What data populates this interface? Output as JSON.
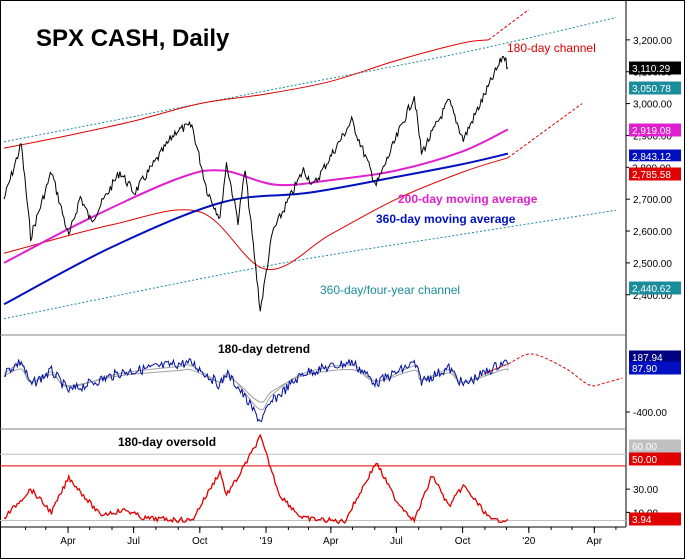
{
  "chart_data": [
    {
      "type": "line",
      "title": "SPX CASH, Daily",
      "x_range": [
        "2018-01-02",
        "2020-05-15"
      ],
      "x_tick_labels": [
        "Apr",
        "Jul",
        "Oct",
        "'19",
        "Apr",
        "Jul",
        "Oct",
        "'20",
        "Apr"
      ],
      "ylim": [
        2280,
        3300
      ],
      "y_ticks": [
        2400,
        2500,
        2600,
        2700,
        2800,
        2900,
        3000,
        3100,
        3200
      ],
      "y_tick_labels": [
        "2,400.00",
        "2,500.00",
        "2,600.00",
        "2,700.00",
        "2,800.00",
        "2,900.00",
        "3,000.00",
        "3,100.00",
        "3,200.00"
      ],
      "price_series_points": [
        [
          "2018-01-02",
          2700
        ],
        [
          "2018-01-26",
          2873
        ],
        [
          "2018-02-08",
          2581
        ],
        [
          "2018-03-09",
          2786
        ],
        [
          "2018-04-02",
          2582
        ],
        [
          "2018-04-18",
          2708
        ],
        [
          "2018-05-03",
          2630
        ],
        [
          "2018-06-12",
          2786
        ],
        [
          "2018-07-02",
          2720
        ],
        [
          "2018-08-29",
          2914
        ],
        [
          "2018-09-20",
          2931
        ],
        [
          "2018-10-11",
          2728
        ],
        [
          "2018-10-29",
          2641
        ],
        [
          "2018-11-07",
          2813
        ],
        [
          "2018-11-23",
          2633
        ],
        [
          "2018-12-03",
          2790
        ],
        [
          "2018-12-24",
          2351
        ],
        [
          "2019-01-10",
          2596
        ],
        [
          "2019-02-22",
          2792
        ],
        [
          "2019-03-08",
          2743
        ],
        [
          "2019-04-30",
          2946
        ],
        [
          "2019-06-03",
          2744
        ],
        [
          "2019-07-26",
          3025
        ],
        [
          "2019-08-05",
          2844
        ],
        [
          "2019-09-12",
          3009
        ],
        [
          "2019-10-02",
          2887
        ],
        [
          "2019-11-27",
          3153
        ],
        [
          "2019-12-03",
          3113
        ]
      ],
      "series": [
        {
          "name": "200-day moving average",
          "color": "#e020d0",
          "points": [
            [
              "2018-01-02",
              2500
            ],
            [
              "2018-05-01",
              2640
            ],
            [
              "2018-09-01",
              2765
            ],
            [
              "2018-11-01",
              2790
            ],
            [
              "2019-01-15",
              2745
            ],
            [
              "2019-04-01",
              2760
            ],
            [
              "2019-07-01",
              2790
            ],
            [
              "2019-10-01",
              2850
            ],
            [
              "2019-12-03",
              2919
            ]
          ]
        },
        {
          "name": "360-day moving average",
          "color": "#0010c0",
          "points": [
            [
              "2018-01-02",
              2370
            ],
            [
              "2018-06-01",
              2550
            ],
            [
              "2018-11-01",
              2690
            ],
            [
              "2019-03-01",
              2720
            ],
            [
              "2019-07-01",
              2770
            ],
            [
              "2019-10-01",
              2810
            ],
            [
              "2019-12-03",
              2843
            ]
          ]
        }
      ],
      "channels": [
        {
          "name": "180-day channel",
          "color": "#e00000",
          "upper": [
            [
              "2018-01-02",
              2860
            ],
            [
              "2018-04-01",
              2900
            ],
            [
              "2018-07-01",
              2945
            ],
            [
              "2018-10-01",
              3000
            ],
            [
              "2019-01-01",
              3030
            ],
            [
              "2019-04-01",
              3070
            ],
            [
              "2019-07-01",
              3135
            ],
            [
              "2019-10-01",
              3190
            ],
            [
              "2019-11-06",
              3200
            ]
          ],
          "upper_projection": [
            [
              "2019-11-06",
              3200
            ],
            [
              "2020-01-01",
              3295
            ]
          ],
          "lower": [
            [
              "2018-01-02",
              2530
            ],
            [
              "2018-06-01",
              2620
            ],
            [
              "2018-10-01",
              2660
            ],
            [
              "2019-01-01",
              2480
            ],
            [
              "2019-04-01",
              2590
            ],
            [
              "2019-07-01",
              2700
            ],
            [
              "2019-10-01",
              2785
            ],
            [
              "2019-12-03",
              2830
            ]
          ],
          "lower_projection": [
            [
              "2019-12-03",
              2830
            ],
            [
              "2020-03-15",
              3000
            ]
          ]
        },
        {
          "name": "360-day/four-year channel",
          "color": "#1a8c9c",
          "upper": [
            [
              "2018-01-02",
              2880
            ],
            [
              "2019-01-01",
              3040
            ],
            [
              "2019-10-01",
              3160
            ],
            [
              "2020-05-01",
              3270
            ]
          ],
          "lower": [
            [
              "2018-01-02",
              2325
            ],
            [
              "2019-01-01",
              2490
            ],
            [
              "2019-10-01",
              2590
            ],
            [
              "2020-05-01",
              2665
            ]
          ]
        }
      ],
      "annotations": [
        "180-day channel",
        "200-day moving average",
        "360-day moving average",
        "360-day/four-year channel"
      ],
      "value_labels": [
        {
          "text": "3,110.29",
          "value": 3110.29,
          "bg": "#000000",
          "fg": "#ffffff"
        },
        {
          "text": "3,050.78",
          "value": 3050.78,
          "bg": "#1a8c9c",
          "fg": "#ffffff"
        },
        {
          "text": "2,919.08",
          "value": 2919.08,
          "bg": "#e020d0",
          "fg": "#ffffff"
        },
        {
          "text": "2,843.12",
          "value": 2843.12,
          "bg": "#0010c0",
          "fg": "#ffffff"
        },
        {
          "text": "2,800.00",
          "value": 2800.0,
          "bg": "#e00000",
          "fg": "#ffffff"
        },
        {
          "text": "2,785.58",
          "value": 2785.58,
          "bg": "#e00000",
          "fg": "#ffffff"
        },
        {
          "text": "2,440.62",
          "value": 2440.62,
          "bg": "#1a8c9c",
          "fg": "#ffffff"
        }
      ]
    },
    {
      "type": "line",
      "title": "180-day detrend",
      "ylim": [
        -480,
        420
      ],
      "y_tick_labels": [
        "-400.00"
      ],
      "series": [
        {
          "name": "detrend",
          "color": "#0010a0",
          "points": [
            [
              "2018-01-02",
              60
            ],
            [
              "2018-01-26",
              180
            ],
            [
              "2018-02-08",
              -60
            ],
            [
              "2018-03-09",
              80
            ],
            [
              "2018-04-02",
              -120
            ],
            [
              "2018-06-12",
              60
            ],
            [
              "2018-08-29",
              150
            ],
            [
              "2018-09-20",
              160
            ],
            [
              "2018-10-29",
              -60
            ],
            [
              "2018-11-07",
              60
            ],
            [
              "2018-11-23",
              -80
            ],
            [
              "2018-12-24",
              -420
            ],
            [
              "2019-01-10",
              -220
            ],
            [
              "2019-02-22",
              60
            ],
            [
              "2019-04-30",
              170
            ],
            [
              "2019-06-03",
              -40
            ],
            [
              "2019-07-26",
              160
            ],
            [
              "2019-08-05",
              -20
            ],
            [
              "2019-09-12",
              110
            ],
            [
              "2019-10-02",
              -60
            ],
            [
              "2019-11-27",
              170
            ],
            [
              "2019-12-03",
              150
            ]
          ]
        }
      ],
      "projection": [
        [
          "2019-11-01",
          60
        ],
        [
          "2019-12-03",
          150
        ],
        [
          "2020-01-05",
          250
        ],
        [
          "2020-02-20",
          110
        ],
        [
          "2020-03-25",
          -60
        ],
        [
          "2020-04-15",
          -40
        ],
        [
          "2020-05-10",
          10
        ]
      ],
      "value_labels": [
        {
          "text": "187.94",
          "bg": "#000080",
          "fg": "#ffffff"
        },
        {
          "text": "87.90",
          "bg": "#0010c0",
          "fg": "#ffffff"
        }
      ]
    },
    {
      "type": "line",
      "title": "180-day oversold",
      "ylim": [
        0,
        80
      ],
      "y_tick_labels": [
        "10.00",
        "30.00"
      ],
      "reference_lines": [
        {
          "value": 60,
          "color": "#c0c0c0"
        },
        {
          "value": 50,
          "color": "#e00000"
        }
      ],
      "series": [
        {
          "name": "oversold",
          "color": "#e00000",
          "points": [
            [
              "2018-01-02",
              5
            ],
            [
              "2018-02-08",
              30
            ],
            [
              "2018-03-09",
              10
            ],
            [
              "2018-04-02",
              40
            ],
            [
              "2018-05-15",
              8
            ],
            [
              "2018-06-20",
              12
            ],
            [
              "2018-07-15",
              5
            ],
            [
              "2018-09-20",
              3
            ],
            [
              "2018-10-29",
              45
            ],
            [
              "2018-11-07",
              25
            ],
            [
              "2018-11-23",
              40
            ],
            [
              "2018-12-24",
              75
            ],
            [
              "2019-01-20",
              25
            ],
            [
              "2019-02-20",
              5
            ],
            [
              "2019-04-20",
              2
            ],
            [
              "2019-06-03",
              53
            ],
            [
              "2019-07-01",
              20
            ],
            [
              "2019-07-26",
              3
            ],
            [
              "2019-08-20",
              42
            ],
            [
              "2019-09-12",
              15
            ],
            [
              "2019-10-02",
              33
            ],
            [
              "2019-11-10",
              3
            ],
            [
              "2019-12-03",
              3.94
            ]
          ]
        }
      ],
      "value_labels": [
        {
          "text": "60.00",
          "bg": "#c0c0c0",
          "fg": "#ffffff"
        },
        {
          "text": "50.00",
          "bg": "#e00000",
          "fg": "#ffffff"
        },
        {
          "text": "3.94",
          "bg": "#e00000",
          "fg": "#ffffff"
        }
      ]
    }
  ]
}
